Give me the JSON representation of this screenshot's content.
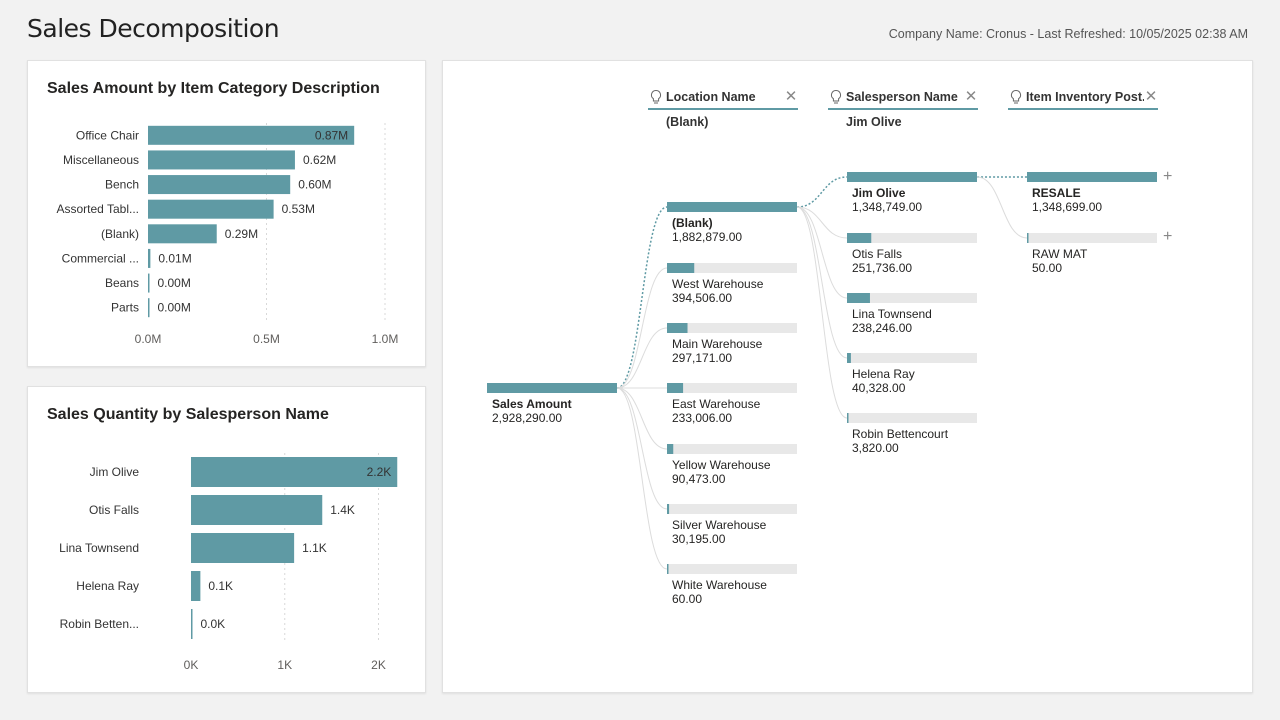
{
  "page": {
    "title": "Sales Decomposition",
    "refresh_text": "Company Name: Cronus - Last Refreshed: 10/05/2025 02:38 AM"
  },
  "colors": {
    "bar": "#5f9aa4",
    "track": "#e8e8e8",
    "grid": "#d8d8d8"
  },
  "chart_data": [
    {
      "type": "bar",
      "orientation": "horizontal",
      "title": "Sales Amount by Item Category Description",
      "categories": [
        "Office Chair",
        "Miscellaneous",
        "Bench",
        "Assorted Tabl...",
        "(Blank)",
        "Commercial ...",
        "Beans",
        "Parts"
      ],
      "values": [
        0.87,
        0.62,
        0.6,
        0.53,
        0.29,
        0.01,
        0.0,
        0.0
      ],
      "value_labels": [
        "0.87M",
        "0.62M",
        "0.60M",
        "0.53M",
        "0.29M",
        "0.01M",
        "0.00M",
        "0.00M"
      ],
      "xticks": [
        "0.0M",
        "0.5M",
        "1.0M"
      ],
      "xtick_values": [
        0,
        0.5,
        1.0
      ],
      "xlim": [
        0,
        1.0
      ],
      "grid": true
    },
    {
      "type": "bar",
      "orientation": "horizontal",
      "title": "Sales Quantity by Salesperson Name",
      "categories": [
        "Jim Olive",
        "Otis Falls",
        "Lina Townsend",
        "Helena Ray",
        "Robin Betten..."
      ],
      "values": [
        2.2,
        1.4,
        1.1,
        0.1,
        0.0
      ],
      "value_labels": [
        "2.2K",
        "1.4K",
        "1.1K",
        "0.1K",
        "0.0K"
      ],
      "xticks": [
        "0K",
        "1K",
        "2K"
      ],
      "xtick_values": [
        0,
        1,
        2
      ],
      "xlim": [
        0,
        2.4
      ],
      "grid": true
    }
  ],
  "decomposition_tree": {
    "headers": [
      {
        "label": "Location Name",
        "value": "(Blank)"
      },
      {
        "label": "Salesperson Name",
        "value": "Jim Olive"
      },
      {
        "label": "Item Inventory Post...",
        "value": ""
      }
    ],
    "root": {
      "label": "Sales Amount",
      "value": "2,928,290.00",
      "amount": 2928290
    },
    "levels": [
      {
        "max": 1882879,
        "nodes": [
          {
            "label": "(Blank)",
            "value": "1,882,879.00",
            "amount": 1882879,
            "selected": true
          },
          {
            "label": "West Warehouse",
            "value": "394,506.00",
            "amount": 394506
          },
          {
            "label": "Main Warehouse",
            "value": "297,171.00",
            "amount": 297171
          },
          {
            "label": "East Warehouse",
            "value": "233,006.00",
            "amount": 233006
          },
          {
            "label": "Yellow Warehouse",
            "value": "90,473.00",
            "amount": 90473
          },
          {
            "label": "Silver Warehouse",
            "value": "30,195.00",
            "amount": 30195
          },
          {
            "label": "White Warehouse",
            "value": "60.00",
            "amount": 60
          }
        ]
      },
      {
        "max": 1348749,
        "nodes": [
          {
            "label": "Jim Olive",
            "value": "1,348,749.00",
            "amount": 1348749,
            "selected": true
          },
          {
            "label": "Otis Falls",
            "value": "251,736.00",
            "amount": 251736
          },
          {
            "label": "Lina Townsend",
            "value": "238,246.00",
            "amount": 238246
          },
          {
            "label": "Helena Ray",
            "value": "40,328.00",
            "amount": 40328
          },
          {
            "label": "Robin Bettencourt",
            "value": "3,820.00",
            "amount": 3820
          }
        ]
      },
      {
        "max": 1348699,
        "nodes": [
          {
            "label": "RESALE",
            "value": "1,348,699.00",
            "amount": 1348699,
            "selected": true
          },
          {
            "label": "RAW MAT",
            "value": "50.00",
            "amount": 50
          }
        ]
      }
    ]
  }
}
